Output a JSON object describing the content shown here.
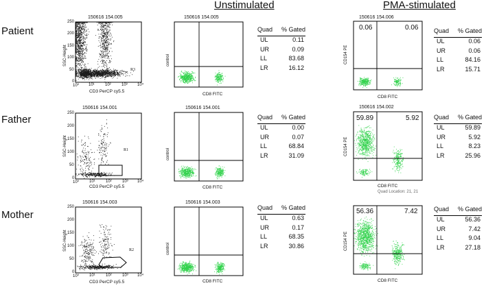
{
  "columns": {
    "unstimulated": "Unstimulated",
    "pma": "PMA-stimulated"
  },
  "colors": {
    "gray_dots": "#1c1c1c",
    "green_dots": "#2fd24a",
    "axis": "#000000"
  },
  "stats_header": {
    "quad": "Quad",
    "gated": "% Gated"
  },
  "rows": [
    {
      "label": "Patient",
      "scatter": {
        "title": "150616 154.005",
        "ylabel": "SSC-Height",
        "xlabel": "CD3 PerCP cy5.5",
        "gate": "R3",
        "yticks": [
          "0",
          "50",
          "100",
          "150",
          "200",
          "250"
        ],
        "xticks": [
          "10⁰",
          "10¹",
          "10²",
          "10³",
          "10⁴"
        ]
      },
      "unstim": {
        "title": "150616 154.005",
        "ylabel": "control",
        "xlabel": "CD8 FITC",
        "stats": [
          {
            "quad": "UL",
            "value": "0.11"
          },
          {
            "quad": "UR",
            "value": "0.09"
          },
          {
            "quad": "LL",
            "value": "83.68"
          },
          {
            "quad": "LR",
            "value": "16.12"
          }
        ]
      },
      "pma": {
        "title": "150616 154.006",
        "ylabel": "CD154 PE",
        "xlabel": "CD8 FITC",
        "ul": "0.06",
        "ur": "0.06",
        "stats": [
          {
            "quad": "UL",
            "value": "0.06"
          },
          {
            "quad": "UR",
            "value": "0.06"
          },
          {
            "quad": "LL",
            "value": "84.16"
          },
          {
            "quad": "LR",
            "value": "15.71"
          }
        ]
      }
    },
    {
      "label": "Father",
      "scatter": {
        "title": "150616 154.001",
        "ylabel": "SSC-Height",
        "xlabel": "CD3 PerCP cy5.5",
        "gate": "R1",
        "yticks": [
          "0",
          "50",
          "100",
          "150",
          "200",
          "250"
        ],
        "xticks": [
          "10⁰",
          "10¹",
          "10²",
          "10³",
          "10⁴"
        ]
      },
      "unstim": {
        "title": "150616 154.001",
        "ylabel": "control",
        "xlabel": "CD8 FITC",
        "stats": [
          {
            "quad": "UL",
            "value": "0.00"
          },
          {
            "quad": "UR",
            "value": "0.07"
          },
          {
            "quad": "LL",
            "value": "68.84"
          },
          {
            "quad": "LR",
            "value": "31.09"
          }
        ]
      },
      "pma": {
        "title": "150616 154.002",
        "ylabel": "CD154 PE",
        "xlabel": "CD8 FITC",
        "ul": "59.89",
        "ur": "5.92",
        "footnote": "Quad Location: 21, 21",
        "stats": [
          {
            "quad": "UL",
            "value": "59.89"
          },
          {
            "quad": "UR",
            "value": "5.92"
          },
          {
            "quad": "LL",
            "value": "8.23"
          },
          {
            "quad": "LR",
            "value": "25.96"
          }
        ]
      }
    },
    {
      "label": "Mother",
      "scatter": {
        "title": "150616 154.003",
        "ylabel": "SSC-Height",
        "xlabel": "CD3 PerCP cy5.5",
        "gate": "R2",
        "yticks": [
          "0",
          "50",
          "100",
          "150",
          "200",
          "250"
        ],
        "xticks": [
          "10⁰",
          "10¹",
          "10²",
          "10³",
          "10⁴"
        ]
      },
      "unstim": {
        "title": "150616 154.003",
        "ylabel": "control",
        "xlabel": "CD8 FITC",
        "stats": [
          {
            "quad": "UL",
            "value": "0.63"
          },
          {
            "quad": "UR",
            "value": "0.17"
          },
          {
            "quad": "LL",
            "value": "68.35"
          },
          {
            "quad": "LR",
            "value": "30.86"
          }
        ]
      },
      "pma": {
        "title": "150616 154.004",
        "ylabel": "CD154 PE",
        "xlabel": "CD8 FITC",
        "ul": "56.36",
        "ur": "7.42",
        "stats": [
          {
            "quad": "UL",
            "value": "56.36"
          },
          {
            "quad": "UR",
            "value": "7.42"
          },
          {
            "quad": "LL",
            "value": "9.04"
          },
          {
            "quad": "LR",
            "value": "27.18"
          }
        ]
      }
    }
  ]
}
